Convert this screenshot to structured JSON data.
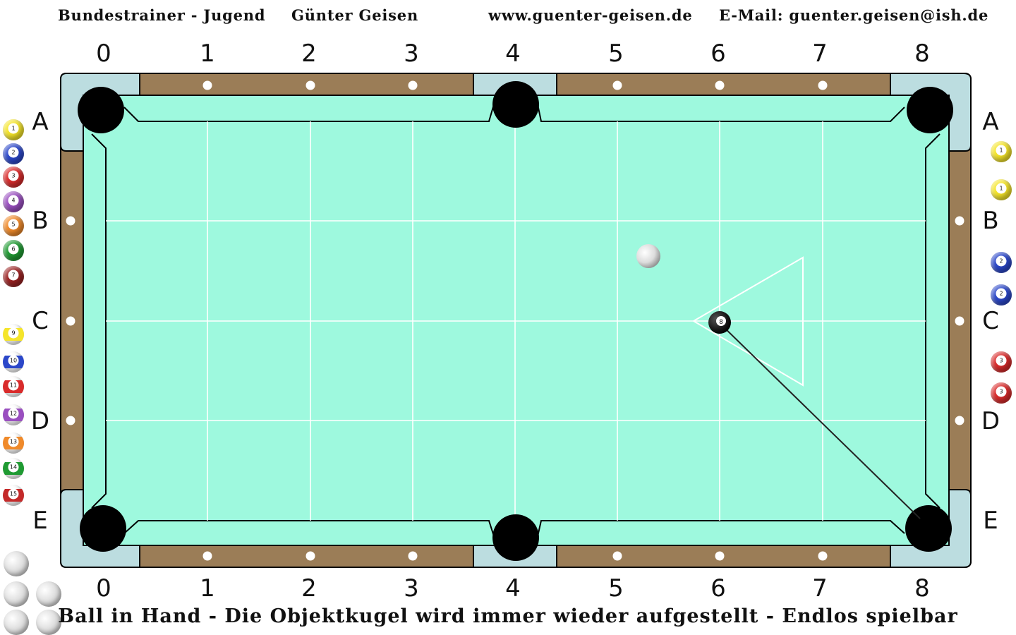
{
  "header": {
    "title": "Bundestrainer - Jugend",
    "author": "Günter Geisen",
    "website": "www.guenter-geisen.de",
    "email": "E-Mail: guenter.geisen@ish.de"
  },
  "footer": {
    "caption": "Ball in Hand - Die Objektkugel wird immer wieder aufgestellt - Endlos spielbar"
  },
  "table": {
    "columns": [
      "0",
      "1",
      "2",
      "3",
      "4",
      "5",
      "6",
      "7",
      "8"
    ],
    "rows": [
      "A",
      "B",
      "C",
      "D",
      "E"
    ],
    "cloth_color": "#9ef9de",
    "rail_color": "#9b7d57",
    "pocket_color": "#000000",
    "corner_color": "#bcdde0",
    "diamond_color": "#ffffff"
  },
  "shot": {
    "object_ball": "8",
    "object_ball_position": {
      "column": 6,
      "row": "C"
    },
    "target_pocket": {
      "column": 8,
      "row": "E"
    },
    "cue_ball_position": {
      "column": 5.3,
      "row": "B-C"
    },
    "position_zone": "triangle"
  },
  "left_rack": {
    "balls": [
      {
        "number": "1",
        "color": "#f5e52a",
        "striped": false
      },
      {
        "number": "2",
        "color": "#2b47c9",
        "striped": false
      },
      {
        "number": "3",
        "color": "#d92b2b",
        "striped": false
      },
      {
        "number": "4",
        "color": "#9a4fc0",
        "striped": false
      },
      {
        "number": "5",
        "color": "#f08a2a",
        "striped": false
      },
      {
        "number": "6",
        "color": "#1f9a32",
        "striped": false
      },
      {
        "number": "7",
        "color": "#9b2222",
        "striped": false
      },
      {
        "number": "9",
        "color": "#f5e52a",
        "striped": true
      },
      {
        "number": "10",
        "color": "#2b47c9",
        "striped": true
      },
      {
        "number": "11",
        "color": "#d92b2b",
        "striped": true
      },
      {
        "number": "12",
        "color": "#9a4fc0",
        "striped": true
      },
      {
        "number": "13",
        "color": "#f08a2a",
        "striped": true
      },
      {
        "number": "14",
        "color": "#1f9a32",
        "striped": true
      },
      {
        "number": "15",
        "color": "#c42a2a",
        "striped": true
      }
    ],
    "cue_balls": 5
  },
  "right_rack": {
    "balls": [
      {
        "number": "1",
        "color": "#f5e52a"
      },
      {
        "number": "1",
        "color": "#f5e52a"
      },
      {
        "number": "2",
        "color": "#2b47c9"
      },
      {
        "number": "2",
        "color": "#2b47c9"
      },
      {
        "number": "3",
        "color": "#d92b2b"
      },
      {
        "number": "3",
        "color": "#d92b2b"
      }
    ]
  }
}
